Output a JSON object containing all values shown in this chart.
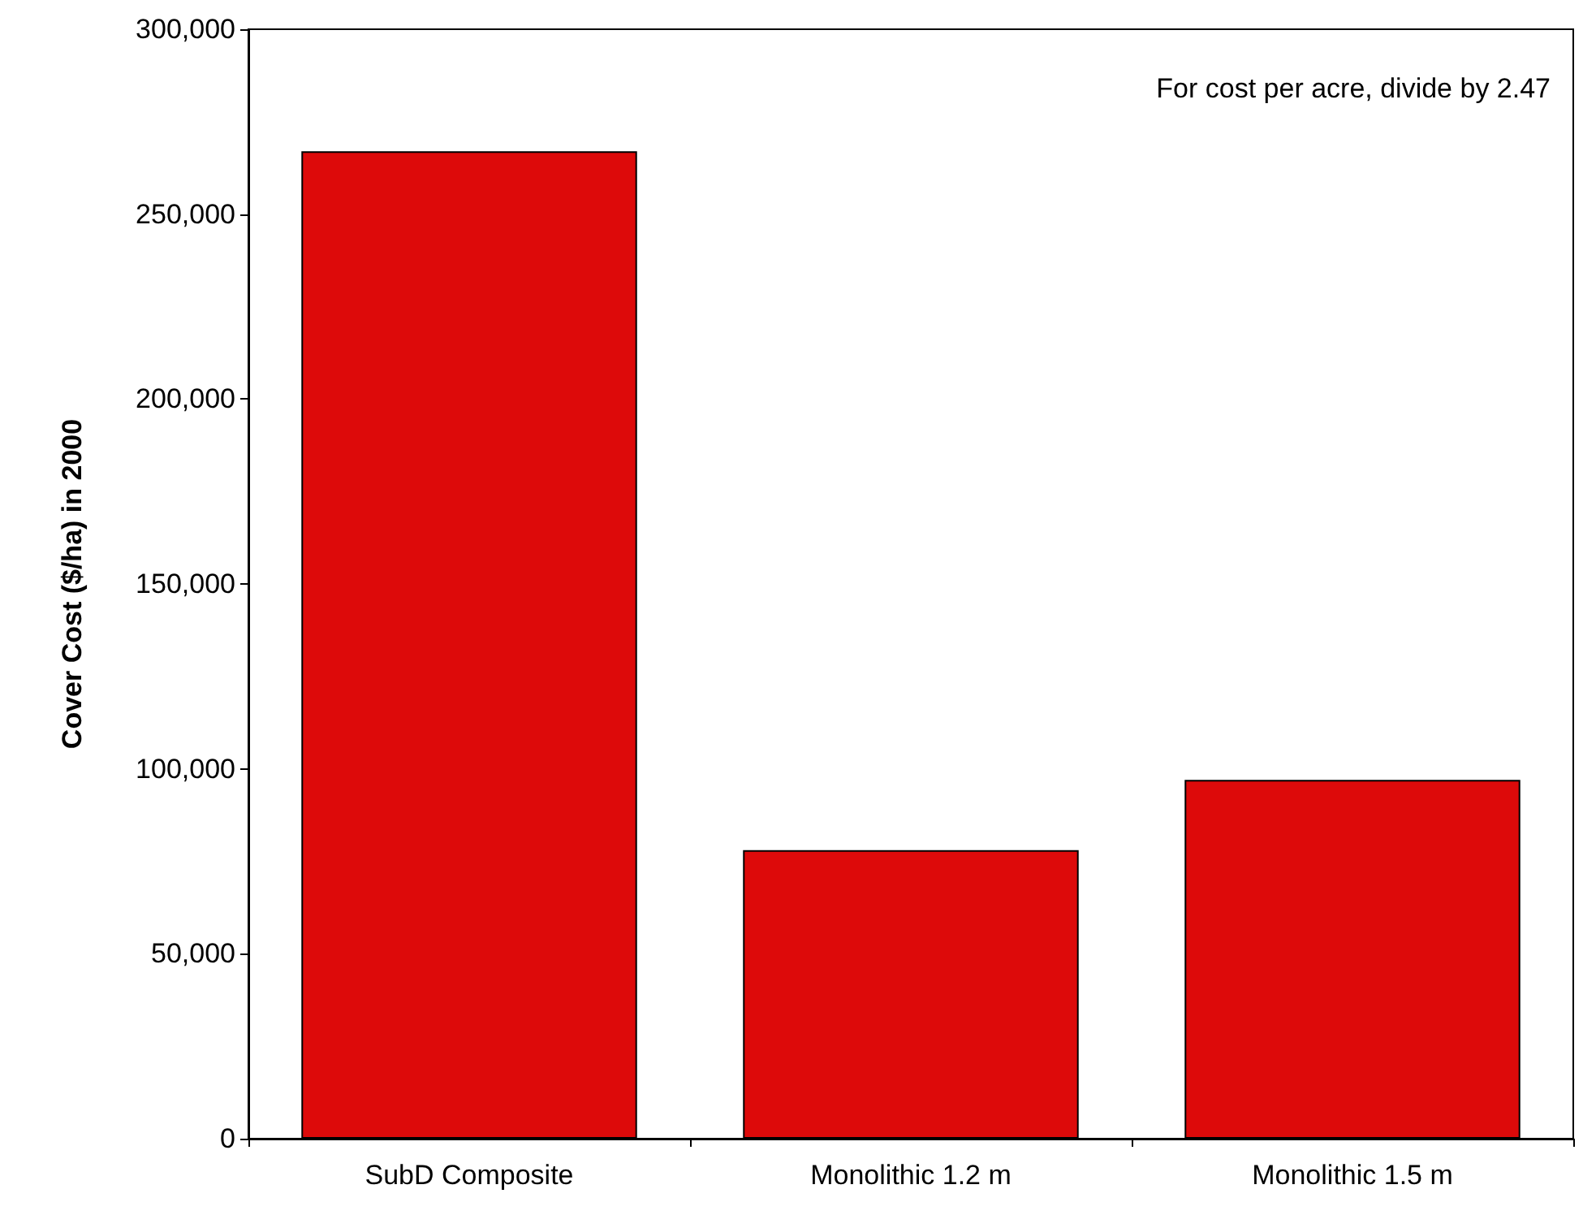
{
  "chart_data": {
    "type": "bar",
    "ylabel": "Cover Cost ($/ha) in 2000",
    "categories": [
      "SubD Composite",
      "Monolithic 1.2 m",
      "Monolithic 1.5 m"
    ],
    "values": [
      267000,
      78000,
      97000
    ],
    "color": "#dd0a0a",
    "ylim": [
      0,
      300000
    ],
    "yticks": [
      0,
      {
        "value": 50000,
        "label": "50,000"
      },
      {
        "value": 100000,
        "label": "100,000"
      },
      {
        "value": 150000,
        "label": "150,000"
      },
      {
        "value": 200000,
        "label": "200,000"
      },
      {
        "value": 250000,
        "label": "250,000"
      },
      {
        "value": 300000,
        "label": "300,000"
      }
    ],
    "grid": false,
    "annotations": [
      "For cost per acre, divide by 2.47"
    ]
  }
}
